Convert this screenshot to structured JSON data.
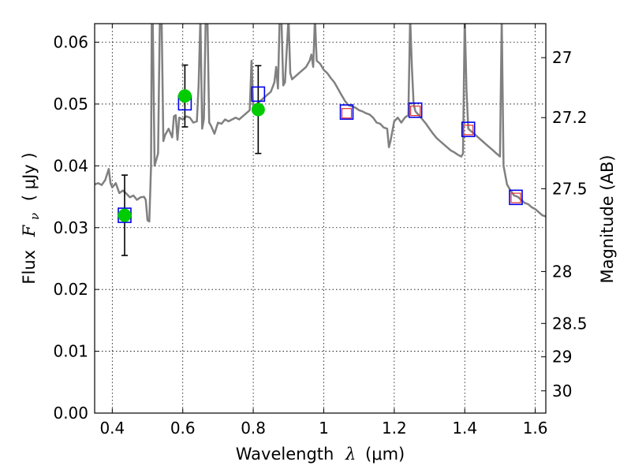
{
  "chart_data": {
    "type": "line",
    "title": "",
    "xlabel": {
      "prefix": "Wavelength",
      "symbol": "λ",
      "unit": "(μm)"
    },
    "ylabel": {
      "prefix": "Flux",
      "symbol": "F",
      "subscript": "ν",
      "unit": "( μJy )"
    },
    "ylabel_right": "Magnitude (AB)",
    "xlim": [
      0.35,
      1.63
    ],
    "ylim": [
      0.0,
      0.063
    ],
    "grid": true,
    "x_ticks": [
      0.4,
      0.6,
      0.8,
      1.0,
      1.2,
      1.4,
      1.6
    ],
    "x_tick_labels": [
      "0.4",
      "0.6",
      "0.8",
      "1",
      "1.2",
      "1.4",
      "1.6"
    ],
    "y_ticks": [
      0.0,
      0.01,
      0.02,
      0.03,
      0.04,
      0.05,
      0.06
    ],
    "y_tick_labels": [
      "0.00",
      "0.01",
      "0.02",
      "0.03",
      "0.04",
      "0.05",
      "0.06"
    ],
    "right_ticks": [
      {
        "label": "27",
        "flux": 0.0575
      },
      {
        "label": "27.2",
        "flux": 0.0478
      },
      {
        "label": "27.5",
        "flux": 0.0363
      },
      {
        "label": "28",
        "flux": 0.0229
      },
      {
        "label": "28.5",
        "flux": 0.0145
      },
      {
        "label": "29",
        "flux": 0.0091
      },
      {
        "label": "30",
        "flux": 0.0036
      }
    ],
    "series": [
      {
        "name": "model spectrum",
        "style": "line",
        "color": "#808080",
        "points": [
          [
            0.35,
            0.037
          ],
          [
            0.36,
            0.0372
          ],
          [
            0.37,
            0.0369
          ],
          [
            0.38,
            0.0377
          ],
          [
            0.39,
            0.0395
          ],
          [
            0.395,
            0.0372
          ],
          [
            0.4,
            0.0365
          ],
          [
            0.41,
            0.0372
          ],
          [
            0.42,
            0.0356
          ],
          [
            0.43,
            0.036
          ],
          [
            0.44,
            0.0355
          ],
          [
            0.45,
            0.0349
          ],
          [
            0.46,
            0.0352
          ],
          [
            0.47,
            0.0345
          ],
          [
            0.48,
            0.0349
          ],
          [
            0.49,
            0.035
          ],
          [
            0.495,
            0.0345
          ],
          [
            0.5,
            0.0312
          ],
          [
            0.505,
            0.031
          ],
          [
            0.51,
            0.04
          ],
          [
            0.512,
            0.064
          ],
          [
            0.515,
            0.063
          ],
          [
            0.52,
            0.04
          ],
          [
            0.53,
            0.042
          ],
          [
            0.535,
            0.064
          ],
          [
            0.54,
            0.064
          ],
          [
            0.545,
            0.044
          ],
          [
            0.55,
            0.045
          ],
          [
            0.56,
            0.046
          ],
          [
            0.57,
            0.0446
          ],
          [
            0.575,
            0.048
          ],
          [
            0.58,
            0.0482
          ],
          [
            0.585,
            0.0442
          ],
          [
            0.59,
            0.0478
          ],
          [
            0.6,
            0.0475
          ],
          [
            0.61,
            0.048
          ],
          [
            0.62,
            0.0478
          ],
          [
            0.63,
            0.047
          ],
          [
            0.64,
            0.0472
          ],
          [
            0.645,
            0.053
          ],
          [
            0.65,
            0.064
          ],
          [
            0.655,
            0.046
          ],
          [
            0.66,
            0.0476
          ],
          [
            0.665,
            0.064
          ],
          [
            0.67,
            0.064
          ],
          [
            0.675,
            0.047
          ],
          [
            0.68,
            0.0465
          ],
          [
            0.69,
            0.0452
          ],
          [
            0.7,
            0.047
          ],
          [
            0.71,
            0.0468
          ],
          [
            0.72,
            0.0475
          ],
          [
            0.73,
            0.0472
          ],
          [
            0.74,
            0.0475
          ],
          [
            0.75,
            0.0478
          ],
          [
            0.76,
            0.0475
          ],
          [
            0.77,
            0.048
          ],
          [
            0.78,
            0.0485
          ],
          [
            0.79,
            0.049
          ],
          [
            0.795,
            0.057
          ],
          [
            0.8,
            0.0497
          ],
          [
            0.81,
            0.05
          ],
          [
            0.82,
            0.0505
          ],
          [
            0.83,
            0.051
          ],
          [
            0.84,
            0.0515
          ],
          [
            0.85,
            0.052
          ],
          [
            0.86,
            0.0535
          ],
          [
            0.865,
            0.056
          ],
          [
            0.87,
            0.0525
          ],
          [
            0.875,
            0.064
          ],
          [
            0.88,
            0.064
          ],
          [
            0.885,
            0.053
          ],
          [
            0.89,
            0.0535
          ],
          [
            0.9,
            0.064
          ],
          [
            0.905,
            0.055
          ],
          [
            0.91,
            0.054
          ],
          [
            0.92,
            0.0545
          ],
          [
            0.93,
            0.055
          ],
          [
            0.94,
            0.0555
          ],
          [
            0.95,
            0.056
          ],
          [
            0.96,
            0.057
          ],
          [
            0.965,
            0.058
          ],
          [
            0.97,
            0.056
          ],
          [
            0.975,
            0.064
          ],
          [
            0.98,
            0.057
          ],
          [
            0.99,
            0.0565
          ],
          [
            1.0,
            0.0555
          ],
          [
            1.01,
            0.055
          ],
          [
            1.02,
            0.0542
          ],
          [
            1.03,
            0.0535
          ],
          [
            1.04,
            0.0525
          ],
          [
            1.05,
            0.0515
          ],
          [
            1.06,
            0.0505
          ],
          [
            1.07,
            0.0498
          ],
          [
            1.08,
            0.0496
          ],
          [
            1.09,
            0.0494
          ],
          [
            1.1,
            0.049
          ],
          [
            1.11,
            0.0488
          ],
          [
            1.12,
            0.0485
          ],
          [
            1.13,
            0.0483
          ],
          [
            1.14,
            0.0478
          ],
          [
            1.15,
            0.047
          ],
          [
            1.16,
            0.0468
          ],
          [
            1.17,
            0.0462
          ],
          [
            1.18,
            0.046
          ],
          [
            1.185,
            0.043
          ],
          [
            1.19,
            0.0442
          ],
          [
            1.2,
            0.0472
          ],
          [
            1.21,
            0.0478
          ],
          [
            1.22,
            0.047
          ],
          [
            1.23,
            0.0478
          ],
          [
            1.24,
            0.0482
          ],
          [
            1.245,
            0.064
          ],
          [
            1.25,
            0.056
          ],
          [
            1.255,
            0.05
          ],
          [
            1.26,
            0.0488
          ],
          [
            1.27,
            0.0482
          ],
          [
            1.28,
            0.0475
          ],
          [
            1.29,
            0.0468
          ],
          [
            1.3,
            0.046
          ],
          [
            1.31,
            0.0452
          ],
          [
            1.32,
            0.0445
          ],
          [
            1.33,
            0.044
          ],
          [
            1.34,
            0.0435
          ],
          [
            1.35,
            0.043
          ],
          [
            1.36,
            0.0425
          ],
          [
            1.37,
            0.0422
          ],
          [
            1.38,
            0.0418
          ],
          [
            1.39,
            0.0415
          ],
          [
            1.395,
            0.042
          ],
          [
            1.4,
            0.064
          ],
          [
            1.405,
            0.052
          ],
          [
            1.41,
            0.046
          ],
          [
            1.42,
            0.0455
          ],
          [
            1.43,
            0.045
          ],
          [
            1.44,
            0.0445
          ],
          [
            1.45,
            0.044
          ],
          [
            1.46,
            0.0435
          ],
          [
            1.47,
            0.043
          ],
          [
            1.48,
            0.0425
          ],
          [
            1.49,
            0.042
          ],
          [
            1.5,
            0.0415
          ],
          [
            1.505,
            0.064
          ],
          [
            1.51,
            0.04
          ],
          [
            1.52,
            0.037
          ],
          [
            1.53,
            0.036
          ],
          [
            1.54,
            0.0352
          ],
          [
            1.55,
            0.035
          ],
          [
            1.56,
            0.0345
          ],
          [
            1.57,
            0.034
          ],
          [
            1.58,
            0.0338
          ],
          [
            1.59,
            0.0333
          ],
          [
            1.6,
            0.033
          ],
          [
            1.61,
            0.0325
          ],
          [
            1.62,
            0.032
          ],
          [
            1.63,
            0.0318
          ]
        ]
      },
      {
        "name": "observed photometry",
        "style": "marker-circle",
        "color": "#00cc00",
        "points": [
          {
            "x": 0.435,
            "y": 0.032,
            "yerr": 0.0065
          },
          {
            "x": 0.606,
            "y": 0.0513,
            "yerr": 0.005
          },
          {
            "x": 0.814,
            "y": 0.0491,
            "yerr": 0.0071
          }
        ]
      },
      {
        "name": "model photometry",
        "style": "marker-square",
        "color": "#0000ee",
        "points": [
          {
            "x": 0.435,
            "y": 0.032
          },
          {
            "x": 0.606,
            "y": 0.0502
          },
          {
            "x": 0.814,
            "y": 0.0516
          },
          {
            "x": 1.065,
            "y": 0.0487
          },
          {
            "x": 1.26,
            "y": 0.049
          },
          {
            "x": 1.41,
            "y": 0.0459
          },
          {
            "x": 1.545,
            "y": 0.0349
          }
        ]
      },
      {
        "name": "predicted photometry",
        "style": "marker-square-small",
        "color": "#e03030",
        "points": [
          {
            "x": 1.065,
            "y": 0.0485
          },
          {
            "x": 1.26,
            "y": 0.0489
          },
          {
            "x": 1.41,
            "y": 0.0458
          },
          {
            "x": 1.545,
            "y": 0.0348
          }
        ]
      }
    ]
  }
}
